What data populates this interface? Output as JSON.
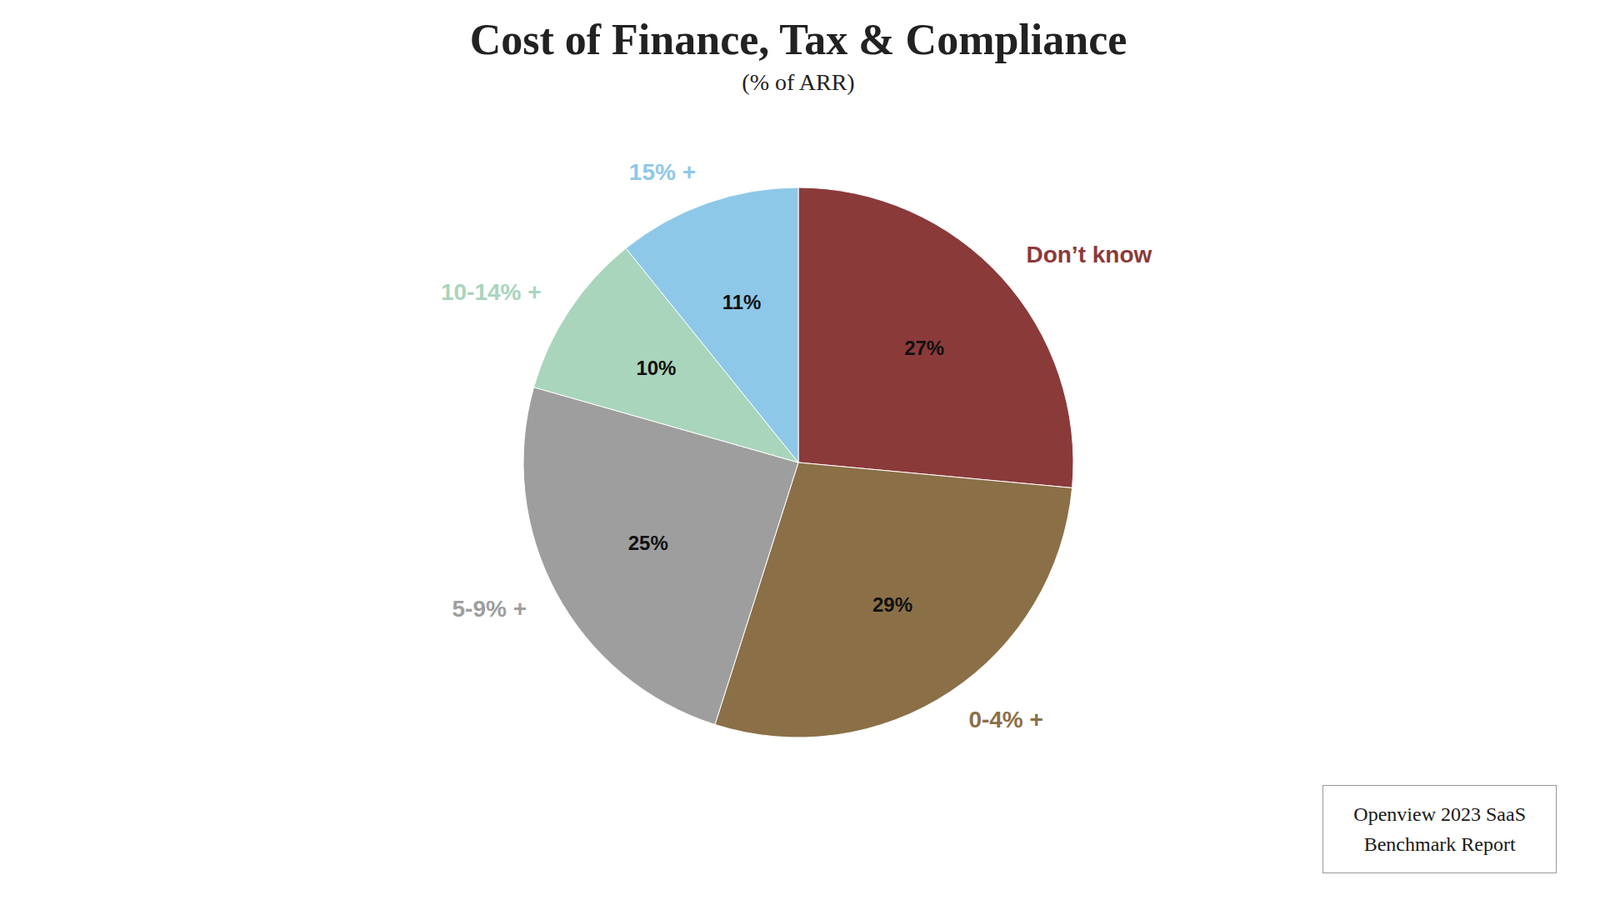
{
  "chart_data": {
    "type": "pie",
    "title": "Cost of Finance, Tax & Compliance",
    "subtitle": "(% of ARR)",
    "categories": [
      "Don’t know",
      "0-4% +",
      "5-9% +",
      "10-14% +",
      "15% +"
    ],
    "values": [
      27,
      29,
      25,
      10,
      11
    ],
    "value_labels": [
      "27%",
      "29%",
      "25%",
      "10%",
      "11%"
    ],
    "colors": [
      "#8B3A3A",
      "#8B6F47",
      "#9E9E9E",
      "#A8D5BC",
      "#8EC8E8"
    ],
    "data_labels": true,
    "annotations": [
      "Openview 2023 SaaS",
      "Benchmark Report"
    ]
  }
}
